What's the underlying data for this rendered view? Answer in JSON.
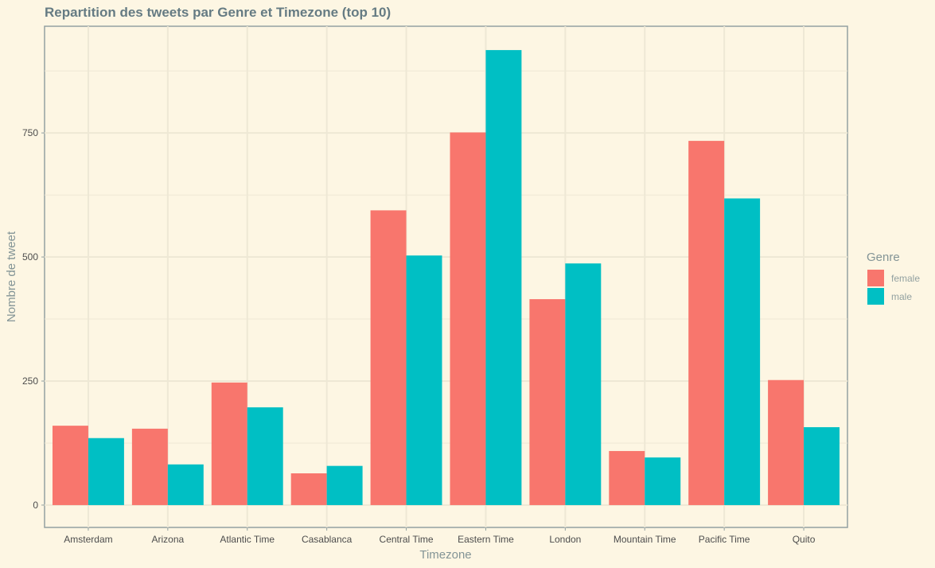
{
  "chart_data": {
    "type": "bar",
    "title": "Repartition des tweets par Genre et Timezone (top 10)",
    "xlabel": "Timezone",
    "ylabel": "Nombre de tweet",
    "categories": [
      "Amsterdam",
      "Arizona",
      "Atlantic Time",
      "Casablanca",
      "Central Time",
      "Eastern Time",
      "London",
      "Mountain Time",
      "Pacific Time",
      "Quito"
    ],
    "series": [
      {
        "name": "female",
        "color": "#f8766d",
        "values": [
          160,
          154,
          247,
          64,
          594,
          751,
          415,
          109,
          734,
          252
        ]
      },
      {
        "name": "male",
        "color": "#00bfc4",
        "values": [
          135,
          82,
          197,
          79,
          503,
          917,
          487,
          96,
          618,
          157
        ]
      }
    ],
    "ylim": [
      -45,
      965
    ],
    "yticks": [
      0,
      250,
      500,
      750
    ],
    "grid": true,
    "legend": {
      "title": "Genre",
      "position": "right"
    }
  }
}
